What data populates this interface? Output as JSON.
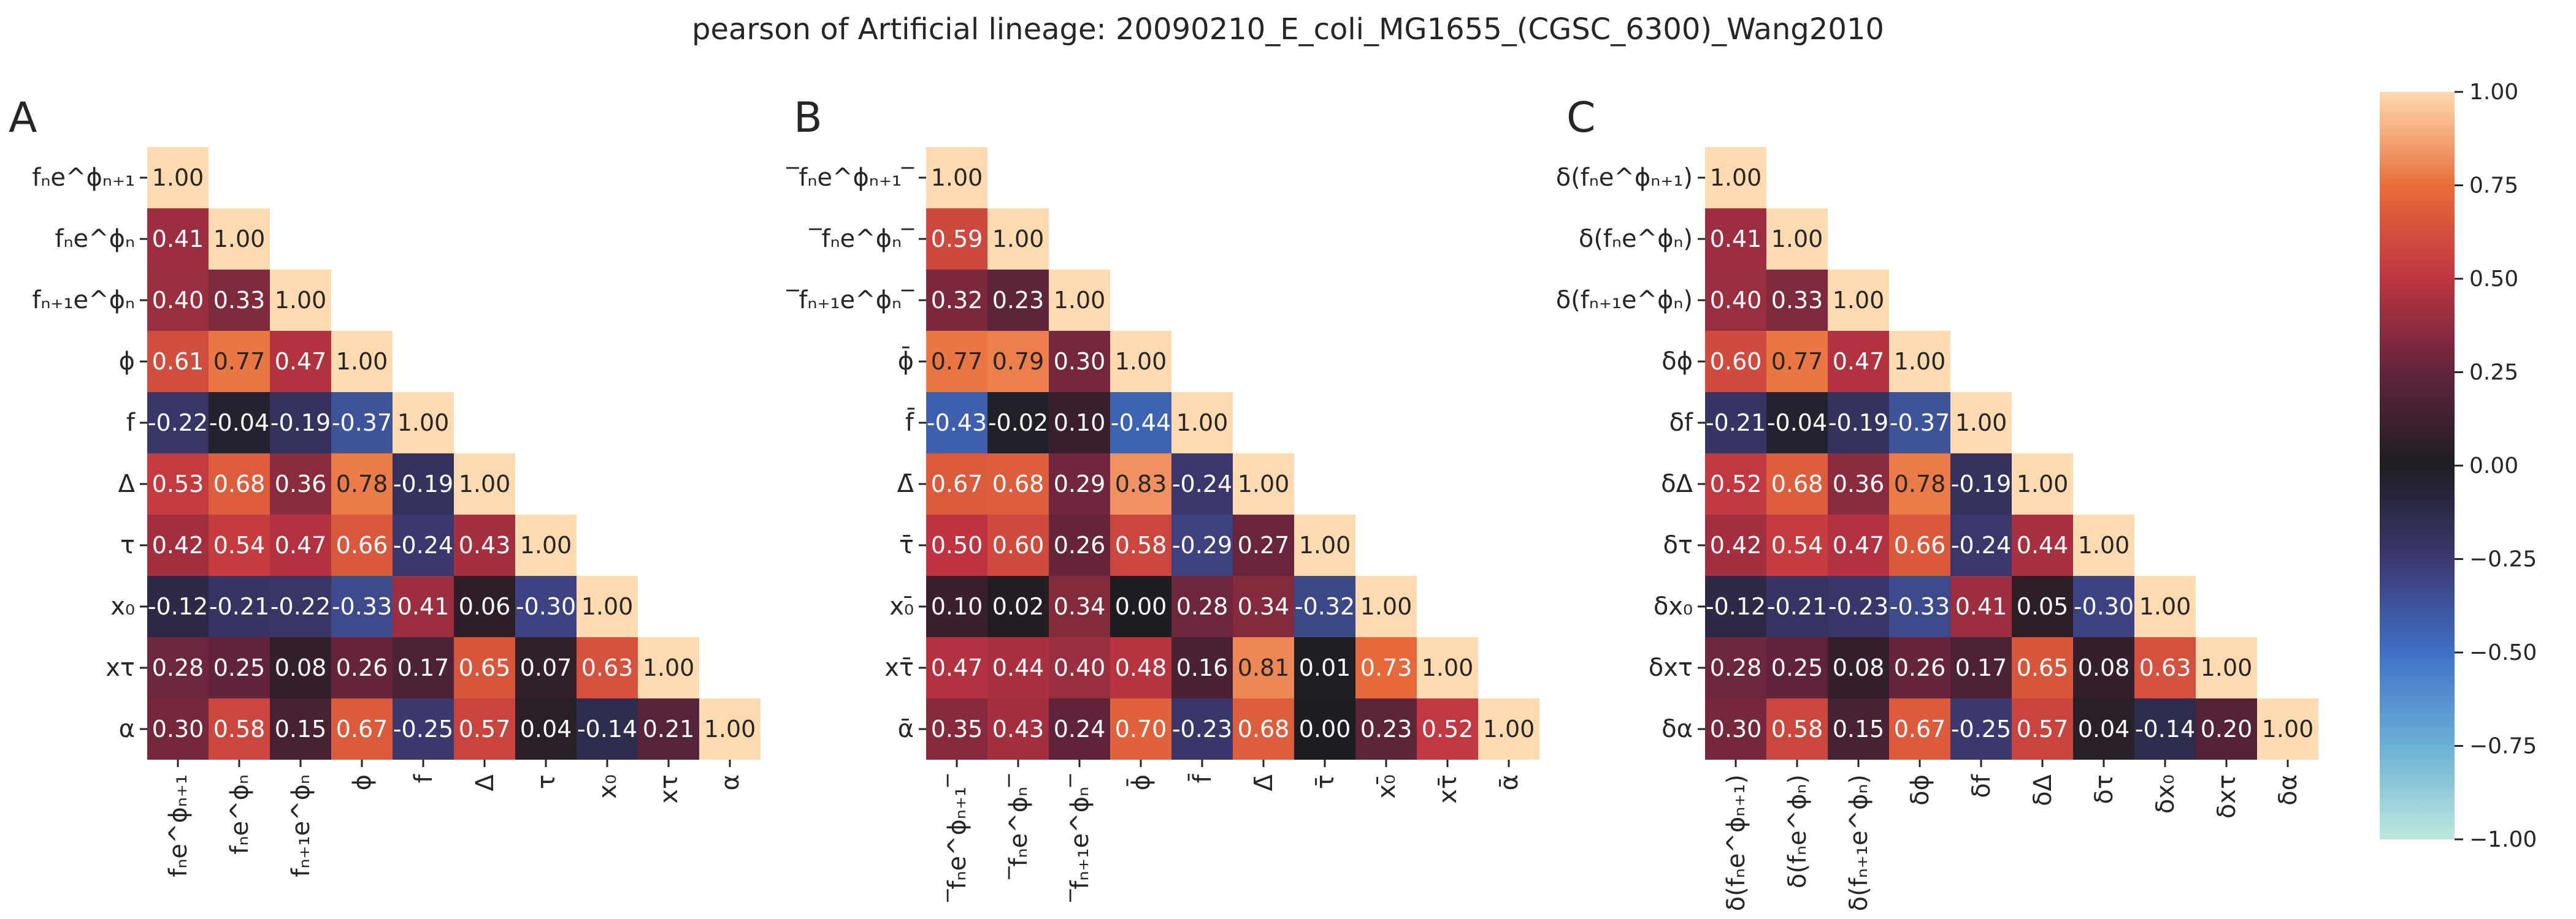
{
  "chart_data": {
    "type": "heatmap",
    "title": "pearson of Artificial lineage: 20090210_E_coli_MG1655_(CGSC_6300)_Wang2010",
    "colorbar": {
      "ticks": [
        "1.00",
        "0.75",
        "0.50",
        "0.25",
        "0.00",
        "−0.25",
        "−0.50",
        "−0.75",
        "−1.00"
      ],
      "range": [
        -1,
        1
      ],
      "colormap": "icefire"
    },
    "panels": [
      {
        "label": "A",
        "y_labels": [
          "fₙe^ϕₙ₊₁",
          "fₙe^ϕₙ",
          "fₙ₊₁e^ϕₙ",
          "ϕ",
          "f",
          "Δ",
          "τ",
          "x₀",
          "xτ",
          "α"
        ],
        "x_labels": [
          "fₙe^ϕₙ₊₁",
          "fₙe^ϕₙ",
          "fₙ₊₁e^ϕₙ",
          "ϕ",
          "f",
          "Δ",
          "τ",
          "x₀",
          "xτ",
          "α"
        ],
        "matrix": [
          [
            1.0
          ],
          [
            0.41,
            1.0
          ],
          [
            0.4,
            0.33,
            1.0
          ],
          [
            0.61,
            0.77,
            0.47,
            1.0
          ],
          [
            -0.22,
            -0.04,
            -0.19,
            -0.37,
            1.0
          ],
          [
            0.53,
            0.68,
            0.36,
            0.78,
            -0.19,
            1.0
          ],
          [
            0.42,
            0.54,
            0.47,
            0.66,
            -0.24,
            0.43,
            1.0
          ],
          [
            -0.12,
            -0.21,
            -0.22,
            -0.33,
            0.41,
            0.06,
            -0.3,
            1.0
          ],
          [
            0.28,
            0.25,
            0.08,
            0.26,
            0.17,
            0.65,
            0.07,
            0.63,
            1.0
          ],
          [
            0.3,
            0.58,
            0.15,
            0.67,
            -0.25,
            0.57,
            0.04,
            -0.14,
            0.21,
            1.0
          ]
        ]
      },
      {
        "label": "B",
        "y_labels": [
          "‾fₙe^ϕₙ₊₁‾",
          "‾fₙe^ϕₙ‾",
          "‾fₙ₊₁e^ϕₙ‾",
          "ϕ̄",
          "f̄",
          "Δ̄",
          "τ̄",
          "x₀̄",
          "xτ̄",
          "ᾱ"
        ],
        "x_labels": [
          "‾fₙe^ϕₙ₊₁‾",
          "‾fₙe^ϕₙ‾",
          "‾fₙ₊₁e^ϕₙ‾",
          "ϕ̄",
          "f̄",
          "Δ̄",
          "τ̄",
          "x₀̄",
          "xτ̄",
          "ᾱ"
        ],
        "matrix": [
          [
            1.0
          ],
          [
            0.59,
            1.0
          ],
          [
            0.32,
            0.23,
            1.0
          ],
          [
            0.77,
            0.79,
            0.3,
            1.0
          ],
          [
            -0.43,
            -0.02,
            0.1,
            -0.44,
            1.0
          ],
          [
            0.67,
            0.68,
            0.29,
            0.83,
            -0.24,
            1.0
          ],
          [
            0.5,
            0.6,
            0.26,
            0.58,
            -0.29,
            0.27,
            1.0
          ],
          [
            0.1,
            0.02,
            0.34,
            -0.0,
            0.28,
            0.34,
            -0.32,
            1.0
          ],
          [
            0.47,
            0.44,
            0.4,
            0.48,
            0.16,
            0.81,
            0.01,
            0.73,
            1.0
          ],
          [
            0.35,
            0.43,
            0.24,
            0.7,
            -0.23,
            0.68,
            0.0,
            0.23,
            0.52,
            1.0
          ]
        ]
      },
      {
        "label": "C",
        "y_labels": [
          "δ(fₙe^ϕₙ₊₁)",
          "δ(fₙe^ϕₙ)",
          "δ(fₙ₊₁e^ϕₙ)",
          "δϕ",
          "δf",
          "δΔ",
          "δτ",
          "δx₀",
          "δxτ",
          "δα"
        ],
        "x_labels": [
          "δ(fₙe^ϕₙ₊₁)",
          "δ(fₙe^ϕₙ)",
          "δ(fₙ₊₁e^ϕₙ)",
          "δϕ",
          "δf",
          "δΔ",
          "δτ",
          "δx₀",
          "δxτ",
          "δα"
        ],
        "matrix": [
          [
            1.0
          ],
          [
            0.41,
            1.0
          ],
          [
            0.4,
            0.33,
            1.0
          ],
          [
            0.6,
            0.77,
            0.47,
            1.0
          ],
          [
            -0.21,
            -0.04,
            -0.19,
            -0.37,
            1.0
          ],
          [
            0.52,
            0.68,
            0.36,
            0.78,
            -0.19,
            1.0
          ],
          [
            0.42,
            0.54,
            0.47,
            0.66,
            -0.24,
            0.44,
            1.0
          ],
          [
            -0.12,
            -0.21,
            -0.23,
            -0.33,
            0.41,
            0.05,
            -0.3,
            1.0
          ],
          [
            0.28,
            0.25,
            0.08,
            0.26,
            0.17,
            0.65,
            0.08,
            0.63,
            1.0
          ],
          [
            0.3,
            0.58,
            0.15,
            0.67,
            -0.25,
            0.57,
            0.04,
            -0.14,
            0.2,
            1.0
          ]
        ]
      }
    ]
  }
}
